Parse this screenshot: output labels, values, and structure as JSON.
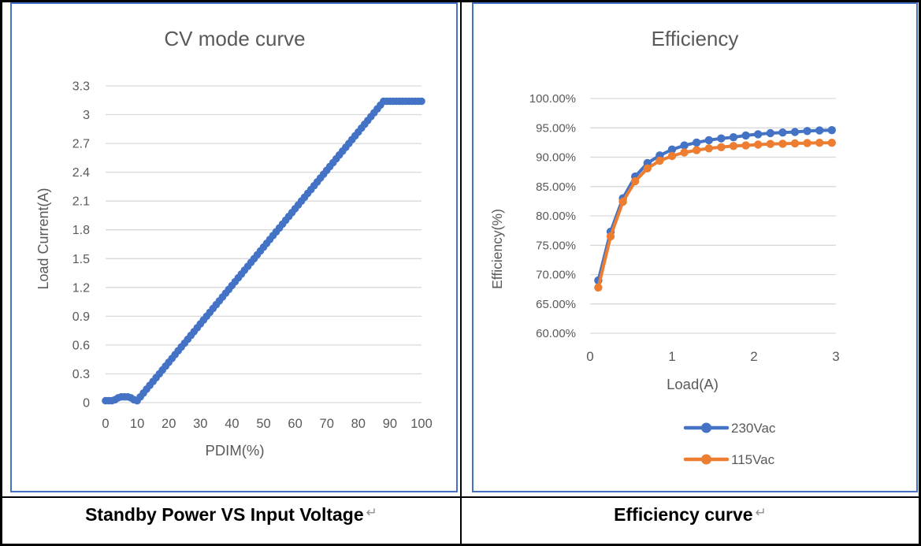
{
  "colors": {
    "accent_blue": "#4472C4",
    "accent_orange": "#ED7D31",
    "gridline": "#D9D9D9",
    "chart_text": "#595959",
    "chart_border": "#4472C4",
    "table_border": "#000000",
    "caption_text": "#000000",
    "return_mark_color": "#8f8f8f"
  },
  "captions": [
    {
      "text": "Standby Power VS Input Voltage",
      "mark": "↵"
    },
    {
      "text": "Efficiency curve",
      "mark": "↵"
    }
  ],
  "chart_data": [
    {
      "type": "scatter",
      "title": "CV mode curve",
      "xlabel": "PDIM(%)",
      "ylabel": "Load Current(A)",
      "xlim": [
        0,
        100
      ],
      "ylim": [
        0,
        3.3
      ],
      "grid": true,
      "legend_position": "none",
      "xticks": [
        0,
        10,
        20,
        30,
        40,
        50,
        60,
        70,
        80,
        90,
        100
      ],
      "xtick_labels": [
        "0",
        "10",
        "20",
        "30",
        "40",
        "50",
        "60",
        "70",
        "80",
        "90",
        "100"
      ],
      "yticks": [
        0,
        0.3,
        0.6,
        0.9,
        1.2,
        1.5,
        1.8,
        2.1,
        2.4,
        2.7,
        3,
        3.3
      ],
      "ytick_labels": [
        "0",
        "0.3",
        "0.6",
        "0.9",
        "1.2",
        "1.5",
        "1.8",
        "2.1",
        "2.4",
        "2.7",
        "3",
        "3.3"
      ],
      "series": [
        {
          "name": "Load Current",
          "color": "#4472C4",
          "marker": "circle",
          "line": false,
          "x": [
            0,
            1,
            2,
            3,
            4,
            5,
            6,
            7,
            8,
            9,
            10,
            11,
            12,
            13,
            14,
            15,
            16,
            17,
            18,
            19,
            20,
            21,
            22,
            23,
            24,
            25,
            26,
            27,
            28,
            29,
            30,
            31,
            32,
            33,
            34,
            35,
            36,
            37,
            38,
            39,
            40,
            41,
            42,
            43,
            44,
            45,
            46,
            47,
            48,
            49,
            50,
            51,
            52,
            53,
            54,
            55,
            56,
            57,
            58,
            59,
            60,
            61,
            62,
            63,
            64,
            65,
            66,
            67,
            68,
            69,
            70,
            71,
            72,
            73,
            74,
            75,
            76,
            77,
            78,
            79,
            80,
            81,
            82,
            83,
            84,
            85,
            86,
            87,
            88,
            89,
            90,
            91,
            92,
            93,
            94,
            95,
            96,
            97,
            98,
            99,
            100
          ],
          "y": [
            0.02,
            0.02,
            0.02,
            0.03,
            0.05,
            0.06,
            0.06,
            0.06,
            0.05,
            0.03,
            0.02,
            0.06,
            0.1,
            0.14,
            0.18,
            0.22,
            0.26,
            0.3,
            0.34,
            0.38,
            0.42,
            0.46,
            0.5,
            0.54,
            0.58,
            0.62,
            0.66,
            0.7,
            0.74,
            0.78,
            0.82,
            0.86,
            0.9,
            0.94,
            0.98,
            1.02,
            1.06,
            1.1,
            1.14,
            1.18,
            1.22,
            1.26,
            1.3,
            1.34,
            1.38,
            1.42,
            1.46,
            1.5,
            1.54,
            1.58,
            1.62,
            1.66,
            1.7,
            1.74,
            1.78,
            1.82,
            1.86,
            1.9,
            1.94,
            1.98,
            2.02,
            2.06,
            2.1,
            2.14,
            2.18,
            2.22,
            2.26,
            2.3,
            2.34,
            2.38,
            2.42,
            2.46,
            2.5,
            2.54,
            2.58,
            2.62,
            2.66,
            2.7,
            2.74,
            2.78,
            2.82,
            2.86,
            2.9,
            2.94,
            2.98,
            3.02,
            3.06,
            3.1,
            3.14,
            3.14,
            3.14,
            3.14,
            3.14,
            3.14,
            3.14,
            3.14,
            3.14,
            3.14,
            3.14,
            3.14,
            3.14
          ]
        }
      ]
    },
    {
      "type": "line",
      "title": "Efficiency",
      "xlabel": "Load(A)",
      "ylabel": "Efficiency(%)",
      "xlim": [
        0,
        3
      ],
      "ylim": [
        60,
        100
      ],
      "grid": true,
      "legend_position": "bottom",
      "xticks": [
        0,
        1,
        2,
        3
      ],
      "xtick_labels": [
        "0",
        "1",
        "2",
        "3"
      ],
      "yticks": [
        60,
        65,
        70,
        75,
        80,
        85,
        90,
        95,
        100
      ],
      "ytick_labels": [
        "60.00%",
        "65.00%",
        "70.00%",
        "75.00%",
        "80.00%",
        "85.00%",
        "90.00%",
        "95.00%",
        "100.00%"
      ],
      "series": [
        {
          "name": "230Vac",
          "color": "#4472C4",
          "marker": "circle",
          "line": true,
          "x": [
            0.1,
            0.25,
            0.4,
            0.55,
            0.7,
            0.85,
            1.0,
            1.15,
            1.3,
            1.45,
            1.6,
            1.75,
            1.9,
            2.05,
            2.2,
            2.35,
            2.5,
            2.65,
            2.8,
            2.95
          ],
          "y": [
            69.0,
            77.3,
            83.0,
            86.7,
            89.0,
            90.3,
            91.3,
            92.0,
            92.5,
            92.9,
            93.2,
            93.4,
            93.7,
            93.9,
            94.1,
            94.2,
            94.3,
            94.45,
            94.55,
            94.6
          ]
        },
        {
          "name": "115Vac",
          "color": "#ED7D31",
          "marker": "circle",
          "line": true,
          "x": [
            0.1,
            0.25,
            0.4,
            0.55,
            0.7,
            0.85,
            1.0,
            1.15,
            1.3,
            1.45,
            1.6,
            1.75,
            1.9,
            2.05,
            2.2,
            2.35,
            2.5,
            2.65,
            2.8,
            2.95
          ],
          "y": [
            67.8,
            76.5,
            82.4,
            85.9,
            88.1,
            89.4,
            90.2,
            90.8,
            91.2,
            91.5,
            91.7,
            91.9,
            92.0,
            92.15,
            92.25,
            92.3,
            92.35,
            92.4,
            92.45,
            92.45
          ]
        }
      ]
    }
  ]
}
